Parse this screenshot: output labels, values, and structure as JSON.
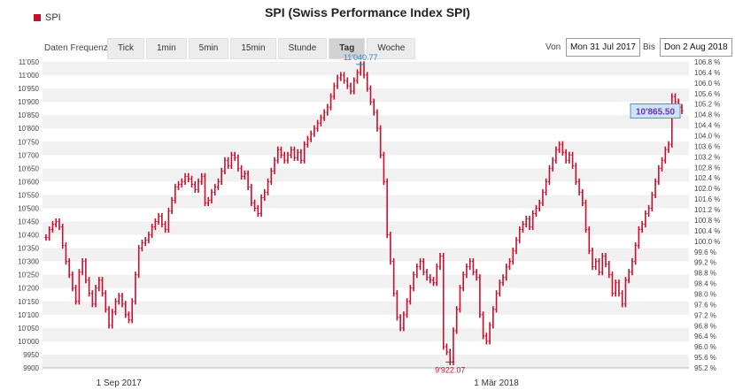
{
  "legend": {
    "label": "SPI",
    "color": "#c8102e"
  },
  "title": "SPI (Swiss Performance Index SPI)",
  "controls": {
    "freq_label": "Daten Frequenz",
    "tabs": [
      {
        "label": "Tick",
        "active": false
      },
      {
        "label": "1min",
        "active": false
      },
      {
        "label": "5min",
        "active": false
      },
      {
        "label": "15min",
        "active": false
      },
      {
        "label": "Stunde",
        "active": false
      },
      {
        "label": "Tag",
        "active": true
      },
      {
        "label": "Woche",
        "active": false
      }
    ],
    "from_label": "Von",
    "from_value": "Mon 31 Jul 2017",
    "to_label": "Bis",
    "to_value": "Don 2 Aug 2018"
  },
  "chart_data": {
    "type": "bar",
    "series": [
      {
        "name": "SPI",
        "color": "#c8102e",
        "values": [
          10390,
          10420,
          10440,
          10450,
          10430,
          10360,
          10300,
          10250,
          10200,
          10150,
          10260,
          10300,
          10230,
          10180,
          10140,
          10200,
          10230,
          10180,
          10120,
          10060,
          10110,
          10150,
          10170,
          10140,
          10100,
          10080,
          10150,
          10250,
          10350,
          10370,
          10380,
          10400,
          10430,
          10450,
          10470,
          10440,
          10420,
          10490,
          10530,
          10580,
          10590,
          10600,
          10620,
          10610,
          10590,
          10570,
          10600,
          10620,
          10520,
          10530,
          10560,
          10580,
          10600,
          10640,
          10680,
          10660,
          10700,
          10690,
          10650,
          10620,
          10630,
          10580,
          10520,
          10500,
          10480,
          10540,
          10560,
          10600,
          10640,
          10680,
          10720,
          10700,
          10680,
          10700,
          10720,
          10690,
          10710,
          10680,
          10740,
          10760,
          10780,
          10800,
          10820,
          10840,
          10860,
          10880,
          10920,
          10960,
          10990,
          11000,
          10980,
          10960,
          10940,
          10980,
          11010,
          11040,
          11000,
          10950,
          10900,
          10860,
          10800,
          10700,
          10600,
          10400,
          10300,
          10180,
          10090,
          10050,
          10100,
          10150,
          10200,
          10250,
          10280,
          10300,
          10260,
          10240,
          10230,
          10220,
          10280,
          10320,
          9980,
          9960,
          9922,
          10040,
          10120,
          10200,
          10250,
          10280,
          10300,
          10260,
          10240,
          10100,
          10020,
          10000,
          10060,
          10120,
          10180,
          10220,
          10240,
          10280,
          10300,
          10340,
          10380,
          10420,
          10440,
          10460,
          10430,
          10480,
          10500,
          10520,
          10560,
          10600,
          10650,
          10680,
          10720,
          10740,
          10710,
          10680,
          10700,
          10660,
          10600,
          10560,
          10520,
          10420,
          10340,
          10280,
          10300,
          10260,
          10320,
          10290,
          10250,
          10180,
          10220,
          10180,
          10140,
          10230,
          10260,
          10300,
          10360,
          10420,
          10440,
          10480,
          10500,
          10550,
          10600,
          10650,
          10680,
          10720,
          10740,
          10920,
          10900,
          10880,
          10865.5
        ]
      }
    ],
    "annotations": [
      {
        "label": "11'040.77",
        "value": 11040.77,
        "index": 95,
        "color": "#2a8ac0"
      },
      {
        "label": "9'922.07",
        "value": 9922.07,
        "index": 122,
        "color": "#c8102e"
      }
    ],
    "last_value_label": "10'865.50",
    "xlabels": [
      {
        "label": "1 Sep 2017",
        "index": 22
      },
      {
        "label": "1 Mär 2018",
        "index": 136
      }
    ],
    "ylim": [
      9900,
      11050
    ],
    "yticks_left": [
      "9900",
      "9950",
      "10'000",
      "10'050",
      "10'100",
      "10'150",
      "10'200",
      "10'250",
      "10'300",
      "10'350",
      "10'400",
      "10'450",
      "10'500",
      "10'550",
      "10'600",
      "10'650",
      "10'700",
      "10'750",
      "10'800",
      "10'850",
      "10'900",
      "10'950",
      "11'000",
      "11'050"
    ],
    "yticks_right": [
      "95.2 %",
      "95.6 %",
      "96.0 %",
      "96.4 %",
      "96.8 %",
      "97.2 %",
      "97.6 %",
      "98.0 %",
      "98.4 %",
      "98.8 %",
      "99.2 %",
      "99.6 %",
      "100.0 %",
      "100.4 %",
      "100.8 %",
      "101.2 %",
      "101.6 %",
      "102.0 %",
      "102.4 %",
      "102.8 %",
      "103.2 %",
      "103.6 %",
      "104.0 %",
      "104.4 %",
      "104.8 %",
      "105.2 %",
      "105.6 %",
      "106.0 %",
      "106.4 %",
      "106.8 %"
    ],
    "grid": true
  }
}
